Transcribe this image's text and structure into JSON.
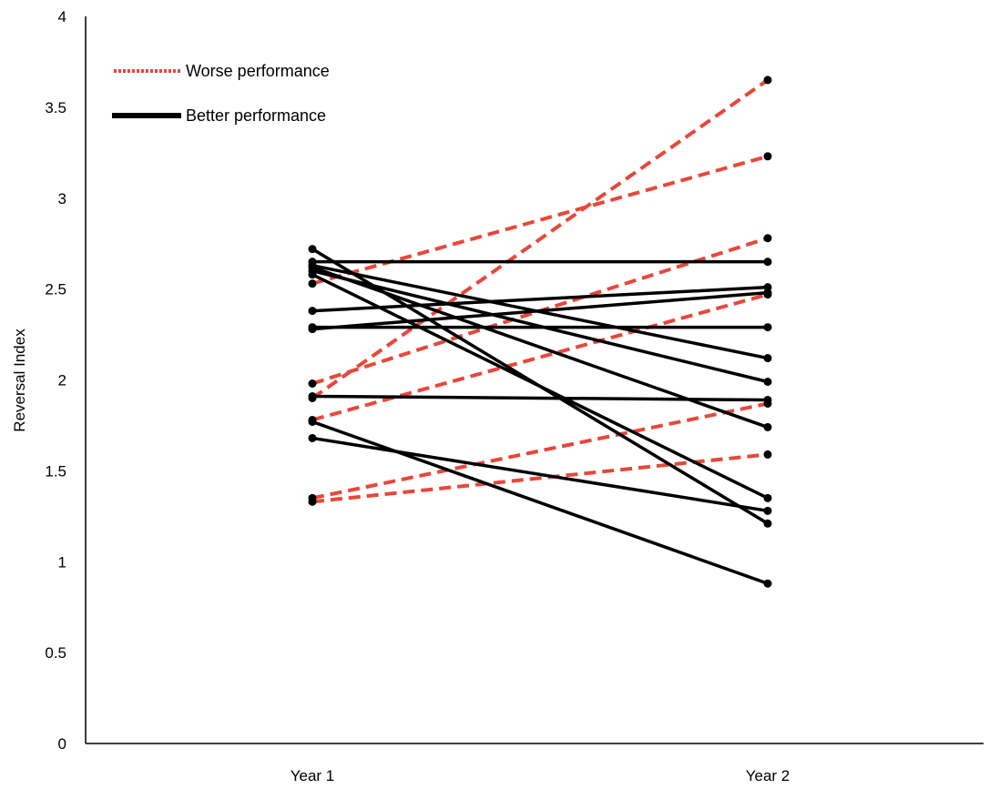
{
  "chart_data": {
    "type": "line",
    "title": "",
    "xlabel": "",
    "ylabel": "Reversal Index",
    "categories": [
      "Year 1",
      "Year 2"
    ],
    "ylim": [
      0,
      4
    ],
    "yticks": [
      "0",
      "0.5",
      "1",
      "1.5",
      "2",
      "2.5",
      "3",
      "3.5",
      "4"
    ],
    "grid": false,
    "legend_position": "top-left",
    "legend": [
      {
        "label": "Worse performance",
        "style": "dashed",
        "color": "#e8473a"
      },
      {
        "label": "Better performance",
        "style": "solid",
        "color": "#000000"
      }
    ],
    "worse_color": "#e8473a",
    "better_color": "#000000",
    "series": [
      {
        "group": "worse",
        "values": [
          1.9,
          3.65
        ]
      },
      {
        "group": "worse",
        "values": [
          2.53,
          3.23
        ]
      },
      {
        "group": "worse",
        "values": [
          1.98,
          2.78
        ]
      },
      {
        "group": "worse",
        "values": [
          1.78,
          2.47
        ]
      },
      {
        "group": "worse",
        "values": [
          1.35,
          1.87
        ]
      },
      {
        "group": "worse",
        "values": [
          1.33,
          1.59
        ]
      },
      {
        "group": "better",
        "values": [
          2.72,
          1.21
        ]
      },
      {
        "group": "better",
        "values": [
          2.65,
          2.65
        ]
      },
      {
        "group": "better",
        "values": [
          2.63,
          2.12
        ]
      },
      {
        "group": "better",
        "values": [
          2.62,
          1.74
        ]
      },
      {
        "group": "better",
        "values": [
          2.6,
          1.99
        ]
      },
      {
        "group": "better",
        "values": [
          2.58,
          1.35
        ]
      },
      {
        "group": "better",
        "values": [
          2.38,
          2.51
        ]
      },
      {
        "group": "better",
        "values": [
          2.29,
          2.29
        ]
      },
      {
        "group": "better",
        "values": [
          2.28,
          2.48
        ]
      },
      {
        "group": "better",
        "values": [
          1.91,
          1.89
        ]
      },
      {
        "group": "better",
        "values": [
          1.77,
          0.88
        ]
      },
      {
        "group": "better",
        "values": [
          1.68,
          1.28
        ]
      }
    ]
  }
}
